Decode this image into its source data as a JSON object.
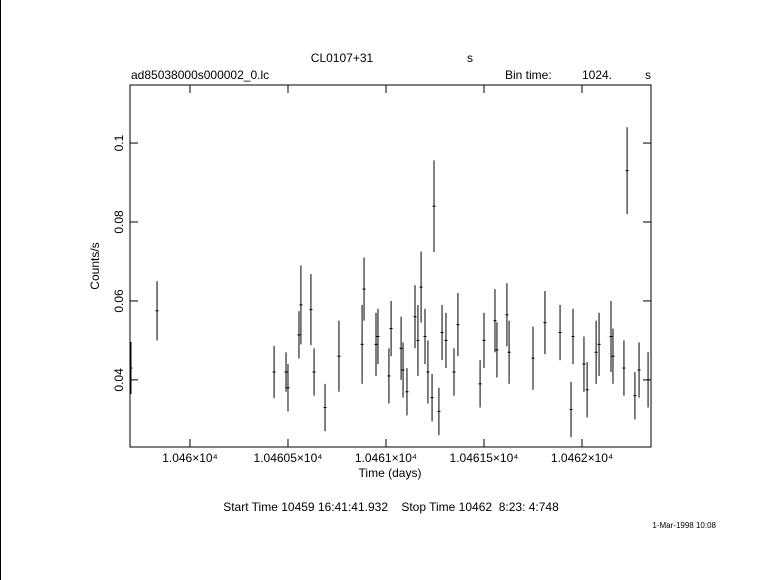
{
  "chart_data": {
    "type": "errorbar",
    "title": "CL0107+31",
    "title_unit": "s",
    "file_name": "ad85038000s000002_0.lc",
    "bin_time_label": "Bin time:",
    "bin_time": "1024.",
    "bin_time_unit": "s",
    "x_label": "Time (days)",
    "y_label": "Counts/s",
    "start_stop": "Start Time 10459 16:41:41.932    Stop Time 10462  8:23: 4:748",
    "timestamp": "1-Mar-1998 10:08",
    "color": "#000000",
    "xlim": [
      10459.694,
      10462.352
    ],
    "ylim": [
      0.023,
      0.1147
    ],
    "xticks": [
      {
        "value": 10460,
        "label": "1.046×10⁴"
      },
      {
        "value": 10460.5,
        "label": "1.04605×10⁴"
      },
      {
        "value": 10461,
        "label": "1.0461×10⁴"
      },
      {
        "value": 10461.5,
        "label": "1.04615×10⁴"
      },
      {
        "value": 10462,
        "label": "1.0462×10⁴"
      }
    ],
    "yticks": [
      0.04,
      0.06,
      0.08,
      0.1
    ],
    "x": [
      10459.699,
      10459.832,
      10460.429,
      10460.49,
      10460.5,
      10460.556,
      10460.566,
      10460.617,
      10460.633,
      10460.689,
      10460.76,
      10460.878,
      10460.888,
      10460.949,
      10460.959,
      10461.015,
      10461.026,
      10461.077,
      10461.087,
      10461.107,
      10461.148,
      10461.163,
      10461.179,
      10461.199,
      10461.214,
      10461.235,
      10461.245,
      10461.27,
      10461.286,
      10461.306,
      10461.347,
      10461.367,
      10461.48,
      10461.5,
      10461.556,
      10461.566,
      10461.617,
      10461.628,
      10461.75,
      10461.811,
      10461.888,
      10461.944,
      10461.954,
      10462.01,
      10462.026,
      10462.072,
      10462.087,
      10462.148,
      10462.158,
      10462.214,
      10462.23,
      10462.27,
      10462.291,
      10462.337
    ],
    "values": [
      0.043,
      0.0575,
      0.042,
      0.042,
      0.038,
      0.0514,
      0.059,
      0.0578,
      0.042,
      0.033,
      0.046,
      0.049,
      0.063,
      0.049,
      0.051,
      0.041,
      0.053,
      0.048,
      0.0425,
      0.037,
      0.056,
      0.05,
      0.0635,
      0.051,
      0.042,
      0.0355,
      0.084,
      0.032,
      0.052,
      0.05,
      0.042,
      0.054,
      0.039,
      0.05,
      0.055,
      0.0476,
      0.0565,
      0.047,
      0.0455,
      0.0545,
      0.052,
      0.0325,
      0.051,
      0.044,
      0.0375,
      0.047,
      0.049,
      0.051,
      0.046,
      0.043,
      0.093,
      0.036,
      0.0425,
      0.04
    ],
    "errors": [
      0.0066,
      0.0075,
      0.0066,
      0.005,
      0.006,
      0.006,
      0.01,
      0.009,
      0.006,
      0.006,
      0.009,
      0.01,
      0.008,
      0.008,
      0.007,
      0.007,
      0.007,
      0.008,
      0.007,
      0.006,
      0.008,
      0.009,
      0.009,
      0.007,
      0.008,
      0.006,
      0.0116,
      0.006,
      0.007,
      0.007,
      0.006,
      0.008,
      0.006,
      0.007,
      0.008,
      0.007,
      0.008,
      0.008,
      0.008,
      0.008,
      0.007,
      0.007,
      0.007,
      0.007,
      0.007,
      0.008,
      0.008,
      0.009,
      0.007,
      0.007,
      0.011,
      0.006,
      0.007,
      0.007
    ]
  }
}
